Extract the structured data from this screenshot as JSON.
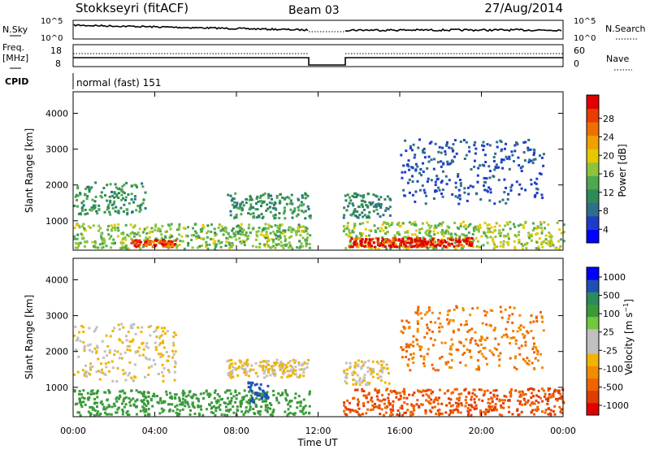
{
  "header": {
    "station": "Stokkseyri (fitACF)",
    "beam": "Beam 03",
    "date": "27/Aug/2014"
  },
  "nsky_panel": {
    "left_label": "N.Sky",
    "right_label": "N.Search",
    "left_ticks": [
      "10^5",
      "10^0"
    ],
    "right_ticks": [
      "10^5",
      "10^0"
    ]
  },
  "freq_panel": {
    "left_label_line1": "Freq.",
    "left_label_line2": "[MHz]",
    "right_label": "Nave",
    "left_ticks": [
      "18",
      "8"
    ],
    "right_ticks": [
      "60",
      "0"
    ]
  },
  "cpid_panel": {
    "label": "CPID",
    "mode_text": "normal (fast) 151"
  },
  "colors": {
    "power_scale": [
      "#0000ff",
      "#1f3cc8",
      "#2f6e8a",
      "#2e8b57",
      "#4fa84f",
      "#8cc43c",
      "#e6c800",
      "#f0a000",
      "#ee7000",
      "#e83c00",
      "#e00000"
    ],
    "velocity_scale": [
      "#0000ff",
      "#1e50b4",
      "#2a8c5c",
      "#3a9a3a",
      "#70c83c",
      "#c0c0c0",
      "#c0c0c0",
      "#f0b400",
      "#f08c00",
      "#f06400",
      "#e03c00",
      "#e00000"
    ]
  },
  "chart_data": [
    {
      "type": "heatmap",
      "title": "Power",
      "xlabel": "Time UT",
      "ylabel": "Slant Range [km]",
      "x_ticks": [
        "00:00",
        "04:00",
        "08:00",
        "12:00",
        "16:00",
        "20:00",
        "00:00"
      ],
      "xlim_hours": [
        0,
        24
      ],
      "y_ticks": [
        1000,
        2000,
        3000,
        4000
      ],
      "ylim": [
        180,
        4600
      ],
      "data_gap_hours": [
        11.6,
        13.2
      ],
      "colorbar": {
        "label": "Power [dB]",
        "ticks": [
          "4",
          "8",
          "12",
          "16",
          "20",
          "24",
          "28"
        ],
        "range": [
          0,
          30
        ]
      },
      "echo_regions": [
        {
          "start_h": 0.0,
          "end_h": 11.6,
          "range_min_km": 250,
          "range_max_km": 950,
          "typical_value": 14
        },
        {
          "start_h": 2.8,
          "end_h": 5.0,
          "range_min_km": 300,
          "range_max_km": 500,
          "typical_value": 27
        },
        {
          "start_h": 0.0,
          "end_h": 3.5,
          "range_min_km": 1200,
          "range_max_km": 2100,
          "typical_value": 10
        },
        {
          "start_h": 7.5,
          "end_h": 11.6,
          "range_min_km": 1100,
          "range_max_km": 1800,
          "typical_value": 10
        },
        {
          "start_h": 13.2,
          "end_h": 24.0,
          "range_min_km": 250,
          "range_max_km": 1000,
          "typical_value": 15
        },
        {
          "start_h": 13.5,
          "end_h": 19.5,
          "range_min_km": 300,
          "range_max_km": 550,
          "typical_value": 28
        },
        {
          "start_h": 13.2,
          "end_h": 15.5,
          "range_min_km": 1100,
          "range_max_km": 1800,
          "typical_value": 9
        },
        {
          "start_h": 16.0,
          "end_h": 23.0,
          "range_min_km": 1500,
          "range_max_km": 3300,
          "typical_value": 5
        }
      ]
    },
    {
      "type": "heatmap",
      "title": "Velocity",
      "xlabel": "Time UT",
      "ylabel": "Slant Range [km]",
      "x_ticks": [
        "00:00",
        "04:00",
        "08:00",
        "12:00",
        "16:00",
        "20:00",
        "00:00"
      ],
      "xlim_hours": [
        0,
        24
      ],
      "y_ticks": [
        1000,
        2000,
        3000,
        4000
      ],
      "ylim": [
        180,
        4600
      ],
      "data_gap_hours": [
        11.6,
        13.2
      ],
      "colorbar": {
        "label": "Velocity [m s^-1]",
        "ticks": [
          "1000",
          "500",
          "100",
          "25",
          "-25",
          "-100",
          "-500",
          "-1000"
        ]
      },
      "echo_regions": [
        {
          "start_h": 0.0,
          "end_h": 11.6,
          "range_min_km": 250,
          "range_max_km": 950,
          "typical_value": 150
        },
        {
          "start_h": 0.0,
          "end_h": 5.0,
          "range_min_km": 1200,
          "range_max_km": 2800,
          "typical_value": 0
        },
        {
          "start_h": 7.5,
          "end_h": 11.6,
          "range_min_km": 1300,
          "range_max_km": 1800,
          "typical_value": 0
        },
        {
          "start_h": 8.5,
          "end_h": 9.5,
          "range_min_km": 600,
          "range_max_km": 1200,
          "typical_value": 800
        },
        {
          "start_h": 13.2,
          "end_h": 24.0,
          "range_min_km": 250,
          "range_max_km": 1000,
          "typical_value": -300
        },
        {
          "start_h": 13.2,
          "end_h": 15.5,
          "range_min_km": 1100,
          "range_max_km": 1800,
          "typical_value": 0
        },
        {
          "start_h": 16.0,
          "end_h": 23.0,
          "range_min_km": 1500,
          "range_max_km": 3300,
          "typical_value": -100
        }
      ]
    }
  ]
}
